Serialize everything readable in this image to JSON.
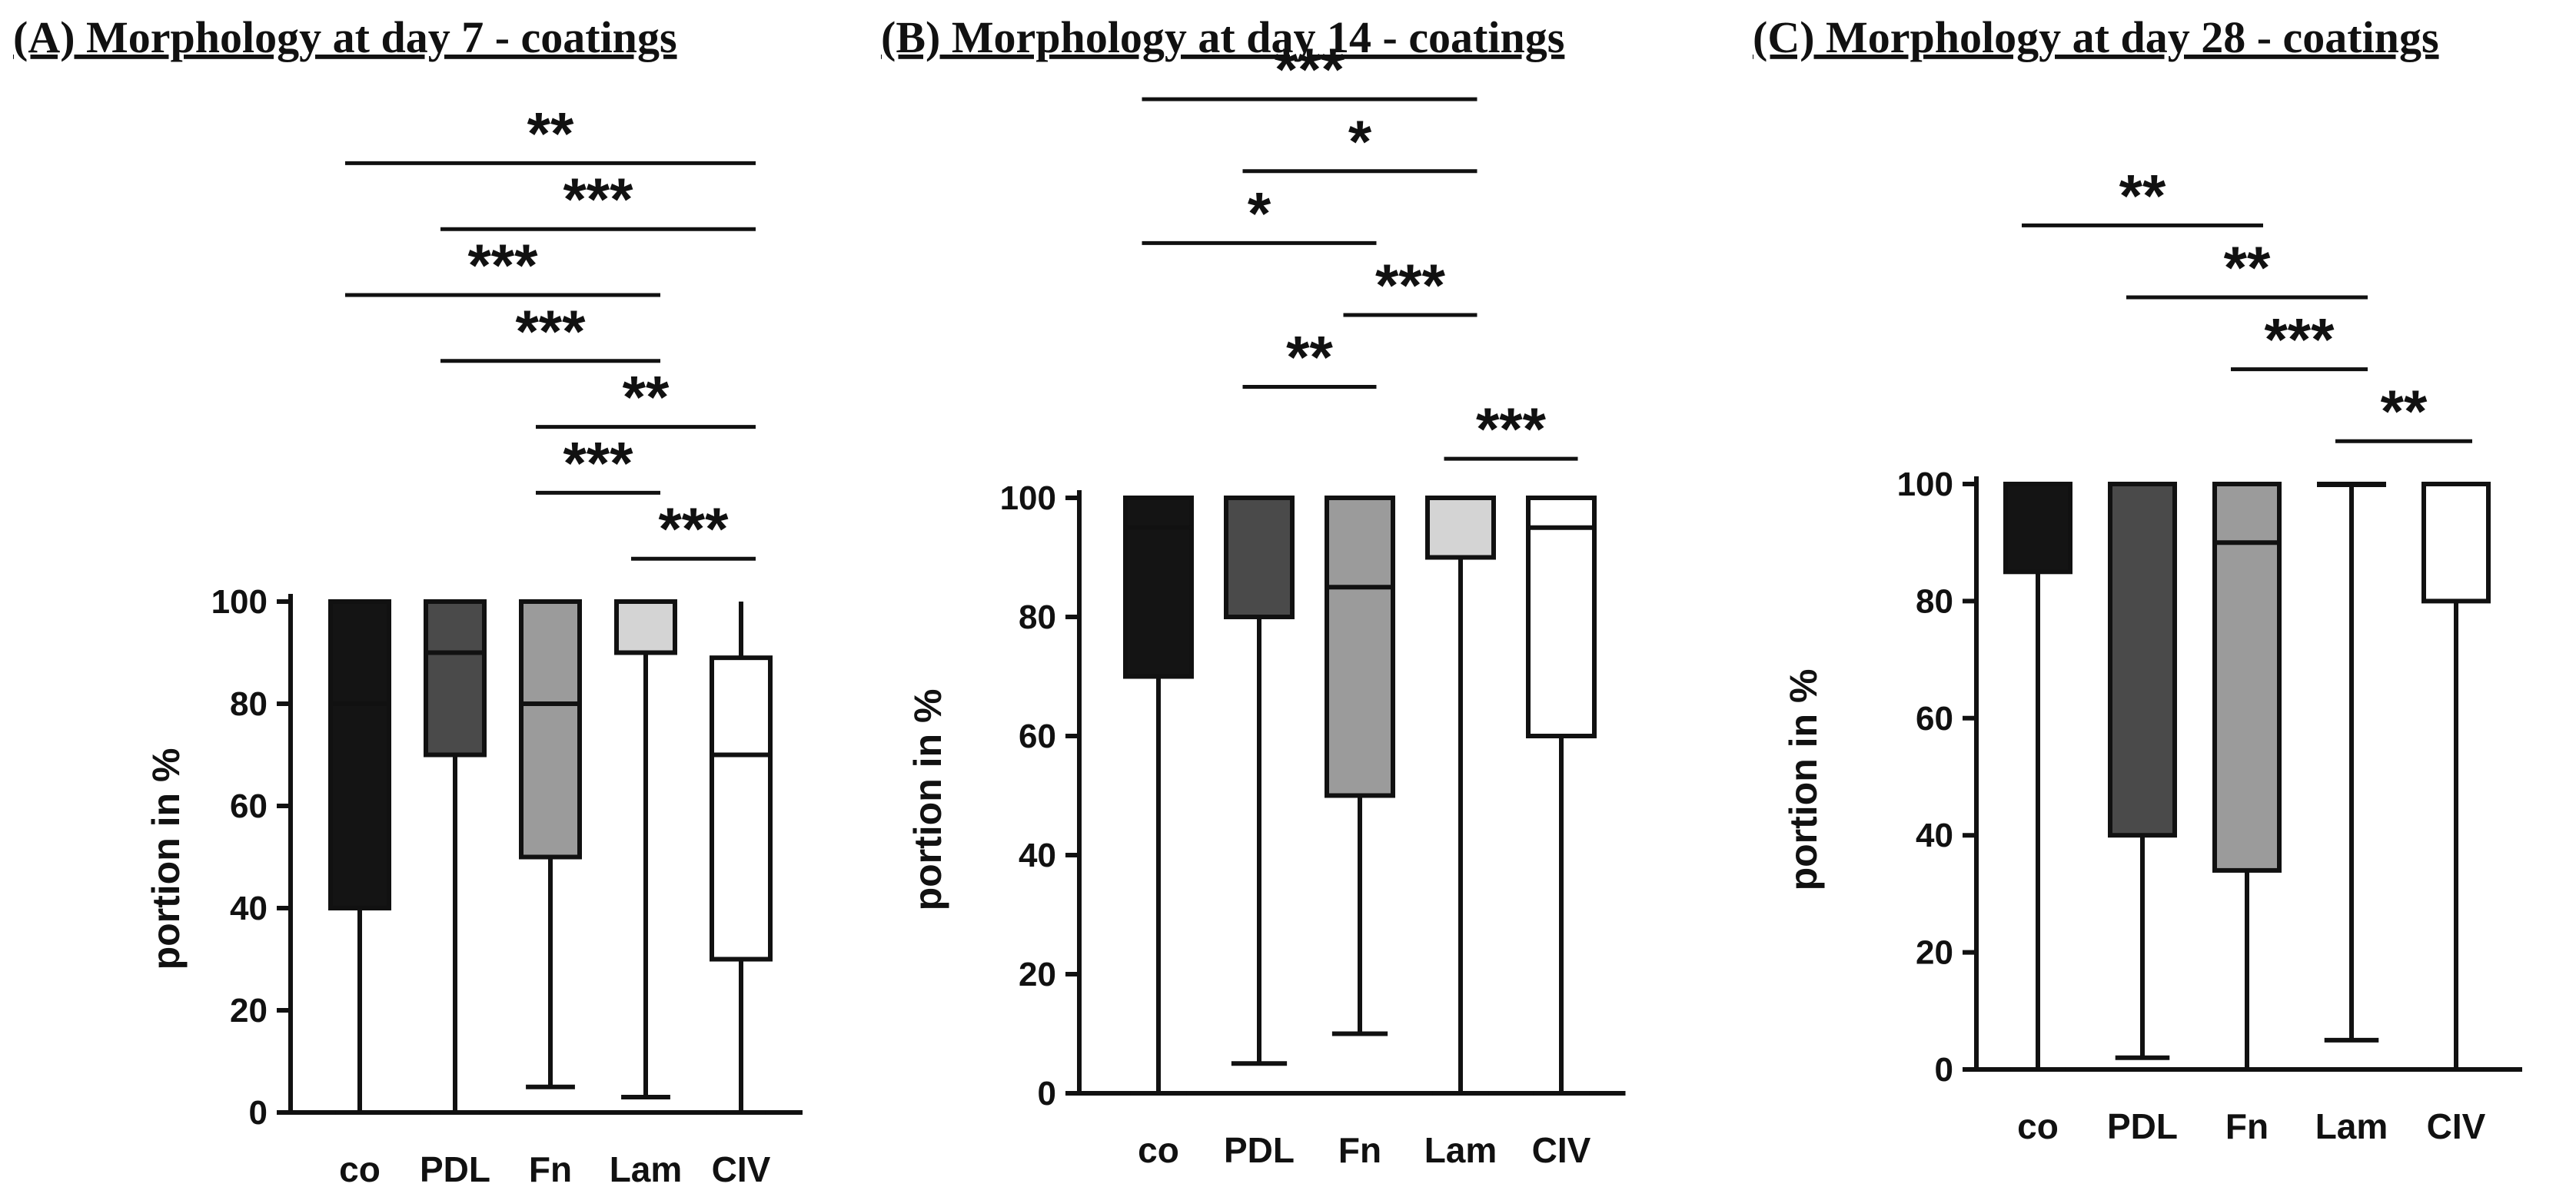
{
  "chart_data": [
    {
      "type": "box",
      "title": "(A) Morphology at day 7 - coatings",
      "xlabel": "",
      "ylabel": "portion in %",
      "ylim": [
        0,
        100
      ],
      "yticks": [
        0,
        20,
        40,
        60,
        80,
        100
      ],
      "categories": [
        "co",
        "PDL",
        "Fn",
        "Lam",
        "CIV"
      ],
      "colors": [
        "#141414",
        "#4a4a4a",
        "#9b9b9b",
        "#d4d4d4",
        "#ffffff"
      ],
      "boxes": [
        {
          "min": 0,
          "q1": 40,
          "median": 80,
          "q3": 100,
          "max": 100
        },
        {
          "min": 0,
          "q1": 70,
          "median": 90,
          "q3": 100,
          "max": 100
        },
        {
          "min": 5,
          "q1": 50,
          "median": 80,
          "q3": 100,
          "max": 100
        },
        {
          "min": 3,
          "q1": 90,
          "median": 100,
          "q3": 100,
          "max": 100
        },
        {
          "min": 0,
          "q1": 30,
          "median": 70,
          "q3": 89,
          "max": 100
        }
      ],
      "significance": [
        {
          "from": "co",
          "to": "CIV",
          "label": "**"
        },
        {
          "from": "PDL",
          "to": "CIV",
          "label": "***"
        },
        {
          "from": "co",
          "to": "Lam",
          "label": "***"
        },
        {
          "from": "PDL",
          "to": "Lam",
          "label": "***"
        },
        {
          "from": "Fn",
          "to": "CIV",
          "label": "**"
        },
        {
          "from": "Fn",
          "to": "Lam",
          "label": "***"
        },
        {
          "from": "Lam",
          "to": "CIV",
          "label": "***"
        }
      ]
    },
    {
      "type": "box",
      "title": "(B) Morphology at day 14 - coatings",
      "xlabel": "",
      "ylabel": "portion in %",
      "ylim": [
        0,
        100
      ],
      "yticks": [
        0,
        20,
        40,
        60,
        80,
        100
      ],
      "categories": [
        "co",
        "PDL",
        "Fn",
        "Lam",
        "CIV"
      ],
      "colors": [
        "#141414",
        "#4a4a4a",
        "#9b9b9b",
        "#d4d4d4",
        "#ffffff"
      ],
      "boxes": [
        {
          "min": 0,
          "q1": 70,
          "median": 95,
          "q3": 100,
          "max": 100
        },
        {
          "min": 5,
          "q1": 80,
          "median": 100,
          "q3": 100,
          "max": 100
        },
        {
          "min": 10,
          "q1": 50,
          "median": 85,
          "q3": 100,
          "max": 100
        },
        {
          "min": 0,
          "q1": 90,
          "median": 100,
          "q3": 100,
          "max": 100
        },
        {
          "min": 0,
          "q1": 60,
          "median": 95,
          "q3": 100,
          "max": 100
        }
      ],
      "significance": [
        {
          "from": "co",
          "to": "Lam",
          "label": "***"
        },
        {
          "from": "PDL",
          "to": "Lam",
          "label": "*"
        },
        {
          "from": "co",
          "to": "Fn",
          "label": "*"
        },
        {
          "from": "Fn",
          "to": "Lam",
          "label": "***"
        },
        {
          "from": "PDL",
          "to": "Fn",
          "label": "**"
        },
        {
          "from": "Lam",
          "to": "CIV",
          "label": "***"
        }
      ]
    },
    {
      "type": "box",
      "title": "(C) Morphology at day 28 - coatings",
      "xlabel": "",
      "ylabel": "portion in %",
      "ylim": [
        0,
        100
      ],
      "yticks": [
        0,
        20,
        40,
        60,
        80,
        100
      ],
      "categories": [
        "co",
        "PDL",
        "Fn",
        "Lam",
        "CIV"
      ],
      "colors": [
        "#141414",
        "#4a4a4a",
        "#9b9b9b",
        "#d4d4d4",
        "#ffffff"
      ],
      "boxes": [
        {
          "min": 0,
          "q1": 85,
          "median": 100,
          "q3": 100,
          "max": 100
        },
        {
          "min": 2,
          "q1": 40,
          "median": 100,
          "q3": 100,
          "max": 100
        },
        {
          "min": 0,
          "q1": 34,
          "median": 90,
          "q3": 100,
          "max": 100
        },
        {
          "min": 5,
          "q1": 100,
          "median": 100,
          "q3": 100,
          "max": 100
        },
        {
          "min": 0,
          "q1": 80,
          "median": 100,
          "q3": 100,
          "max": 100
        }
      ],
      "significance": [
        {
          "from": "co",
          "to": "Fn",
          "label": "**"
        },
        {
          "from": "PDL",
          "to": "Lam",
          "label": "**"
        },
        {
          "from": "Fn",
          "to": "Lam",
          "label": "***"
        },
        {
          "from": "Lam",
          "to": "CIV",
          "label": "**"
        }
      ]
    }
  ]
}
